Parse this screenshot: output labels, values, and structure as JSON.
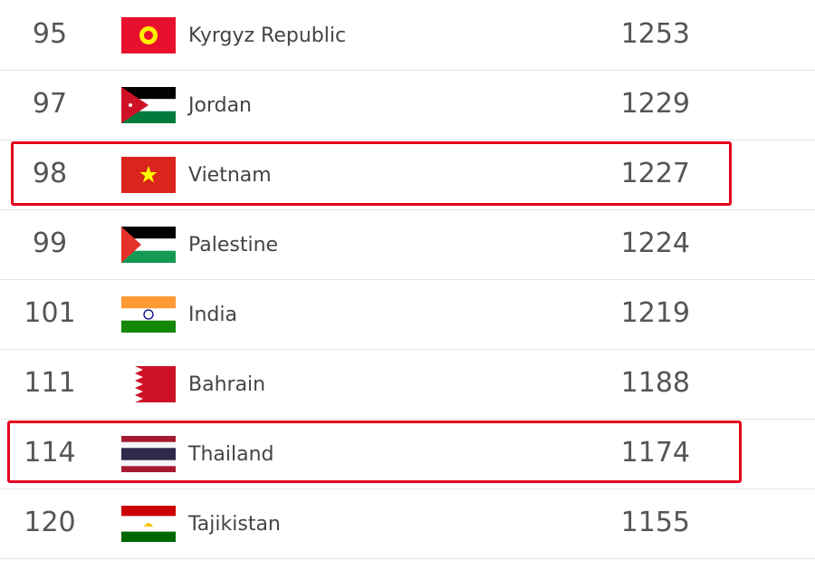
{
  "table": {
    "rows": [
      {
        "rank": 95,
        "country": "Kyrgyz Republic",
        "points": 1253
      },
      {
        "rank": 97,
        "country": "Jordan",
        "points": 1229
      },
      {
        "rank": 98,
        "country": "Vietnam",
        "points": 1227
      },
      {
        "rank": 99,
        "country": "Palestine",
        "points": 1224
      },
      {
        "rank": 101,
        "country": "India",
        "points": 1219
      },
      {
        "rank": 111,
        "country": "Bahrain",
        "points": 1188
      },
      {
        "rank": 114,
        "country": "Thailand",
        "points": 1174
      },
      {
        "rank": 120,
        "country": "Tajikistan",
        "points": 1155
      }
    ]
  }
}
